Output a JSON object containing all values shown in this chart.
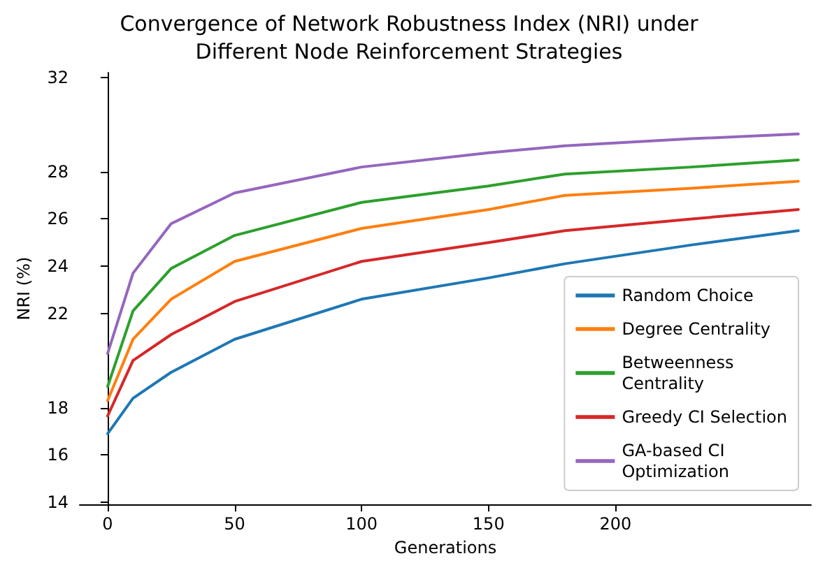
{
  "chart_data": {
    "type": "line",
    "title": "Convergence of Network Robustness Index (NRI) under\nDifferent Node Reinforcement Strategies",
    "xlabel": "Generations",
    "ylabel": "NRI (%)",
    "x": [
      0,
      10,
      25,
      50,
      100,
      150,
      180,
      230,
      272
    ],
    "series": [
      {
        "name": "Random Choice",
        "color": "#1f77b4",
        "values": [
          16.9,
          18.4,
          19.5,
          20.9,
          22.6,
          23.5,
          24.1,
          24.9,
          25.5
        ]
      },
      {
        "name": "Degree Centrality",
        "color": "#ff7f0e",
        "values": [
          18.3,
          20.9,
          22.6,
          24.2,
          25.6,
          26.4,
          27.0,
          27.3,
          27.6
        ]
      },
      {
        "name": "Betweenness\nCentrality",
        "color": "#2ca02c",
        "values": [
          18.9,
          22.1,
          23.9,
          25.3,
          26.7,
          27.4,
          27.9,
          28.2,
          28.5
        ]
      },
      {
        "name": "Greedy CI Selection",
        "color": "#d62728",
        "values": [
          17.65,
          20.0,
          21.1,
          22.5,
          24.2,
          25.0,
          25.5,
          26.0,
          26.4
        ]
      },
      {
        "name": "GA-based CI\nOptimization",
        "color": "#9467bd",
        "values": [
          20.3,
          23.7,
          25.8,
          27.1,
          28.2,
          28.8,
          29.1,
          29.4,
          29.6
        ]
      }
    ],
    "xlim": [
      -11,
      277
    ],
    "xticks": [
      0,
      50,
      100,
      150,
      200
    ],
    "ylim": [
      13.9,
      32.2
    ],
    "yticks": [
      14,
      16,
      18,
      22,
      24,
      26,
      28,
      32
    ],
    "grid": false,
    "legend": "bottom right",
    "marker": "none",
    "line_style": "solid"
  }
}
